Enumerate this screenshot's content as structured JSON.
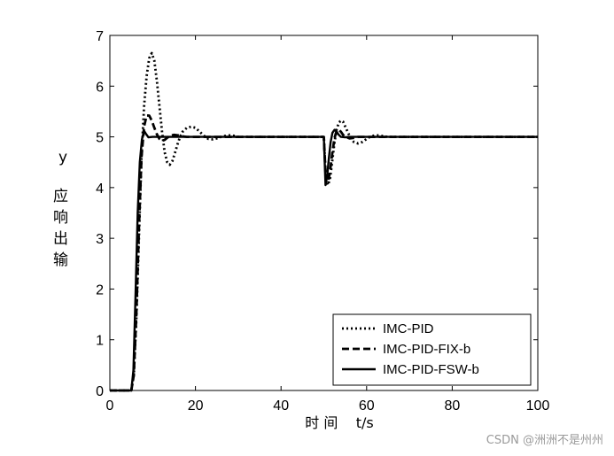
{
  "chart_data": {
    "type": "line",
    "title": "",
    "xlabel": "时 间    t/s",
    "ylabel_lines": [
      "y",
      "应",
      "响",
      "出",
      "输"
    ],
    "xlim": [
      0,
      100
    ],
    "ylim": [
      0,
      7
    ],
    "xticks": [
      0,
      20,
      40,
      60,
      80,
      100
    ],
    "yticks": [
      0,
      1,
      2,
      3,
      4,
      5,
      6,
      7
    ],
    "grid": false,
    "legend_position": "bottom-right",
    "series": [
      {
        "name": "IMC-PID",
        "style": "dotted",
        "color": "#000000",
        "x": [
          0,
          5,
          5.6,
          6.2,
          6.8,
          7.4,
          8.0,
          8.6,
          9.2,
          9.8,
          10.4,
          11.0,
          11.6,
          12.2,
          12.8,
          13.4,
          14.0,
          14.6,
          15.2,
          15.8,
          16.4,
          17.0,
          18.0,
          19.0,
          20.0,
          21.0,
          22.0,
          23.0,
          24.0,
          25.0,
          26.0,
          27.0,
          28.0,
          29.0,
          30.0,
          32.0,
          35.0,
          40.0,
          45.0,
          50.0,
          50.5,
          51.0,
          51.5,
          52.0,
          52.5,
          53.0,
          53.5,
          54.0,
          54.5,
          55.0,
          56.0,
          57.0,
          58.0,
          59.0,
          60.0,
          61.0,
          62.0,
          63.0,
          64.0,
          65.0,
          67.0,
          70.0,
          80.0,
          90.0,
          100.0
        ],
        "y": [
          0,
          0,
          0.3,
          1.4,
          3.0,
          4.6,
          5.6,
          6.2,
          6.55,
          6.65,
          6.5,
          6.1,
          5.6,
          5.1,
          4.7,
          4.5,
          4.45,
          4.52,
          4.68,
          4.85,
          5.0,
          5.1,
          5.18,
          5.2,
          5.18,
          5.1,
          5.02,
          4.96,
          4.95,
          4.97,
          5.0,
          5.02,
          5.03,
          5.02,
          5.0,
          5.0,
          5.0,
          5.0,
          5.0,
          5.0,
          4.15,
          4.05,
          4.2,
          4.55,
          4.9,
          5.15,
          5.28,
          5.32,
          5.3,
          5.2,
          5.02,
          4.9,
          4.87,
          4.9,
          4.96,
          5.01,
          5.03,
          5.03,
          5.01,
          5.0,
          5.0,
          5.0,
          5.0,
          5.0,
          5.0
        ]
      },
      {
        "name": "IMC-PID-FIX-b",
        "style": "dashed",
        "color": "#000000",
        "x": [
          0,
          5,
          5.6,
          6.2,
          6.8,
          7.4,
          8.0,
          8.6,
          9.2,
          9.8,
          10.4,
          11.0,
          11.6,
          12.2,
          12.8,
          13.4,
          14.0,
          15.0,
          16.0,
          17.0,
          18.0,
          20.0,
          22.0,
          25.0,
          30.0,
          40.0,
          50.0,
          50.5,
          51.0,
          51.5,
          52.0,
          52.5,
          53.0,
          53.5,
          54.0,
          54.5,
          55.0,
          56.0,
          57.0,
          58.0,
          60.0,
          65.0,
          70.0,
          80.0,
          90.0,
          100.0
        ],
        "y": [
          0,
          0,
          0.3,
          1.5,
          3.2,
          4.6,
          5.2,
          5.42,
          5.42,
          5.32,
          5.18,
          5.05,
          4.96,
          4.92,
          4.94,
          4.98,
          5.02,
          5.04,
          5.03,
          5.01,
          5.0,
          5.0,
          5.0,
          5.0,
          5.0,
          5.0,
          5.0,
          4.12,
          4.1,
          4.35,
          4.7,
          4.98,
          5.12,
          5.14,
          5.1,
          5.04,
          5.0,
          4.97,
          4.98,
          5.0,
          5.0,
          5.0,
          5.0,
          5.0,
          5.0,
          5.0
        ]
      },
      {
        "name": "IMC-PID-FSW-b",
        "style": "solid",
        "color": "#000000",
        "x": [
          0,
          5,
          5.5,
          6.0,
          6.5,
          7.0,
          7.5,
          8.0,
          8.5,
          9.0,
          10.0,
          12.0,
          15.0,
          20.0,
          30.0,
          40.0,
          50.0,
          50.4,
          50.8,
          51.2,
          51.6,
          52.0,
          52.5,
          53.0,
          53.5,
          54.0,
          55.0,
          56.0,
          58.0,
          60.0,
          70.0,
          80.0,
          90.0,
          100.0
        ],
        "y": [
          0,
          0,
          0.4,
          1.9,
          3.5,
          4.5,
          4.95,
          5.12,
          5.05,
          4.99,
          5.0,
          5.0,
          5.0,
          5.0,
          5.0,
          5.0,
          5.0,
          4.05,
          4.25,
          4.6,
          4.9,
          5.08,
          5.14,
          5.1,
          5.04,
          5.0,
          4.99,
          5.0,
          5.0,
          5.0,
          5.0,
          5.0,
          5.0,
          5.0
        ]
      }
    ]
  },
  "watermark": "CSDN @洲洲不是州州"
}
